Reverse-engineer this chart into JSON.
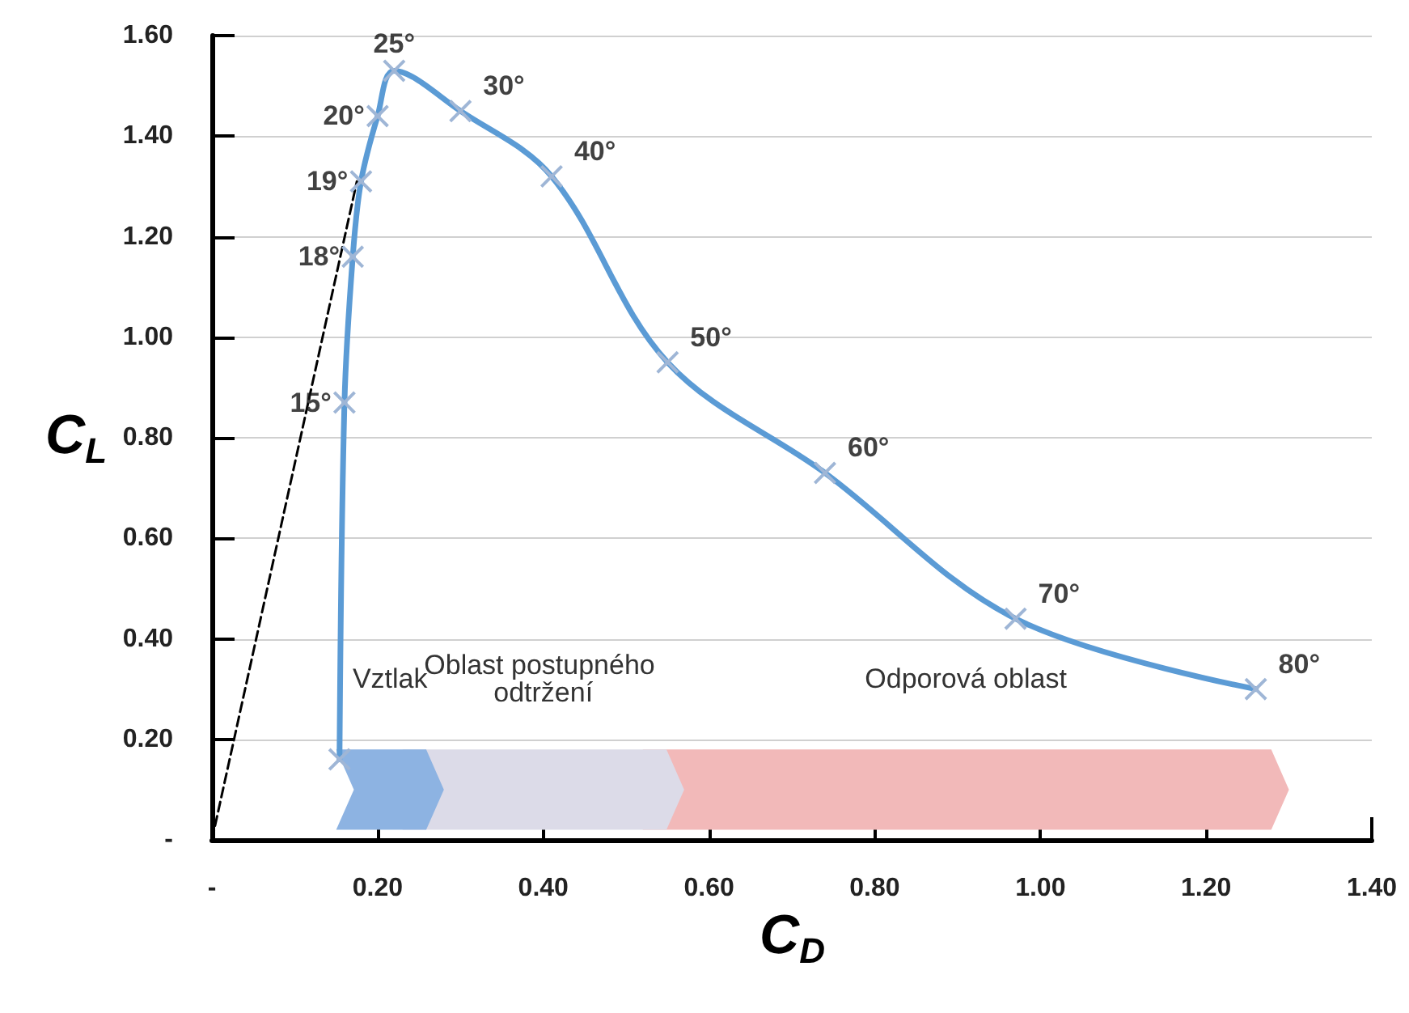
{
  "chart_data": {
    "type": "line",
    "xlabel": "C$_{D}$",
    "ylabel": "C$_{L}$",
    "xlim": [
      0,
      1.4
    ],
    "ylim": [
      0,
      1.6
    ],
    "xticks": [
      {
        "value": 0,
        "label": "-"
      },
      {
        "value": 0.2,
        "label": "0.20"
      },
      {
        "value": 0.4,
        "label": "0.40"
      },
      {
        "value": 0.6,
        "label": "0.60"
      },
      {
        "value": 0.8,
        "label": "0.80"
      },
      {
        "value": 1.0,
        "label": "1.00"
      },
      {
        "value": 1.2,
        "label": "1.20"
      },
      {
        "value": 1.4,
        "label": "1.40"
      }
    ],
    "yticks": [
      {
        "value": 0,
        "label": "-"
      },
      {
        "value": 0.2,
        "label": "0.20"
      },
      {
        "value": 0.4,
        "label": "0.40"
      },
      {
        "value": 0.6,
        "label": "0.60"
      },
      {
        "value": 0.8,
        "label": "0.80"
      },
      {
        "value": 1.0,
        "label": "1.00"
      },
      {
        "value": 1.2,
        "label": "1.20"
      },
      {
        "value": 1.4,
        "label": "1.40"
      },
      {
        "value": 1.6,
        "label": "1.60"
      }
    ],
    "grid": "y",
    "series": [
      {
        "color": "#5b9bd5",
        "marker": "cross",
        "line_style": "solid",
        "x": [
          0.154,
          0.16,
          0.17,
          0.18,
          0.2,
          0.22,
          0.3,
          0.41,
          0.55,
          0.74,
          0.97,
          1.26
        ],
        "values": [
          0.16,
          0.87,
          1.16,
          1.31,
          1.44,
          1.53,
          1.45,
          1.32,
          0.95,
          0.73,
          0.44,
          0.3
        ]
      },
      {
        "type": "line",
        "color": "#000000",
        "marker": "none",
        "line_style": "dashed",
        "x": [
          0,
          0.175
        ],
        "values": [
          0,
          1.31
        ]
      }
    ],
    "annotations": [
      {
        "text": "15°",
        "x": 0.16,
        "y": 0.87
      },
      {
        "text": "18°",
        "x": 0.17,
        "y": 1.16
      },
      {
        "text": "19°",
        "x": 0.18,
        "y": 1.31
      },
      {
        "text": "20°",
        "x": 0.2,
        "y": 1.44
      },
      {
        "text": "25°",
        "x": 0.22,
        "y": 1.53
      },
      {
        "text": "30°",
        "x": 0.3,
        "y": 1.45
      },
      {
        "text": "40°",
        "x": 0.41,
        "y": 1.32
      },
      {
        "text": "50°",
        "x": 0.55,
        "y": 0.95
      },
      {
        "text": "60°",
        "x": 0.74,
        "y": 0.73
      },
      {
        "text": "70°",
        "x": 0.97,
        "y": 0.44
      },
      {
        "text": "80°",
        "x": 1.26,
        "y": 0.3
      }
    ],
    "bands": [
      {
        "axis": "x",
        "from": 0.15,
        "to": 0.28,
        "label": "Vztlak",
        "color": "#8db3e2"
      },
      {
        "axis": "x",
        "from": 0.23,
        "to": 0.57,
        "label": "Oblast postupného odtržení",
        "color": "#dcdbe8"
      },
      {
        "axis": "x",
        "from": 0.52,
        "to": 1.3,
        "label": "Odporová oblast",
        "color": "#f2b9b9"
      }
    ]
  }
}
